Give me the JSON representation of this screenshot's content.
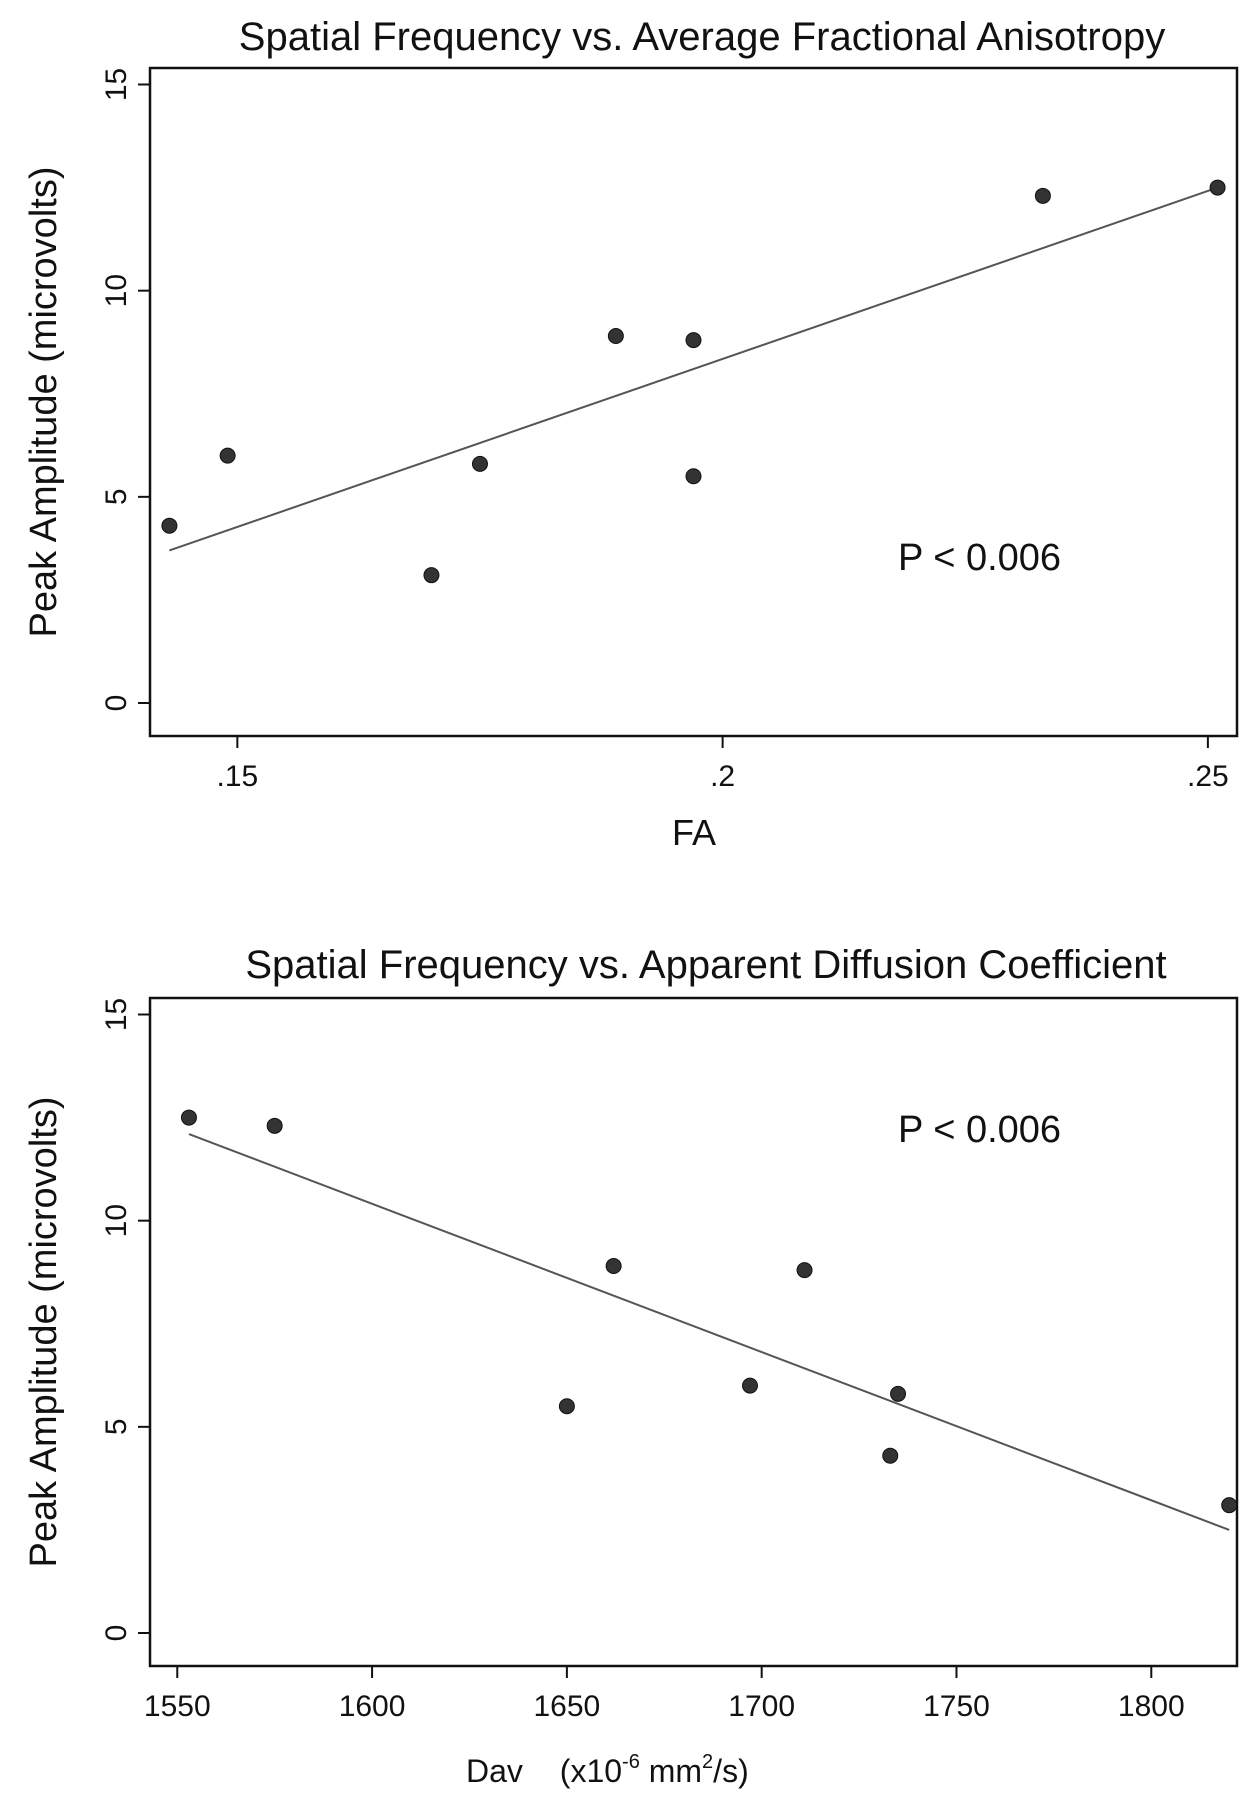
{
  "chart_data": [
    {
      "type": "scatter",
      "title": "Spatial Frequency vs. Average Fractional Anisotropy",
      "xlabel": "FA",
      "ylabel": "Peak Amplitude (microvolts)",
      "xlim": [
        0.141,
        0.253
      ],
      "ylim": [
        -0.8,
        15.4
      ],
      "xticks": [
        0.15,
        0.2,
        0.25
      ],
      "xtick_labels": [
        ".15",
        ".2",
        ".25"
      ],
      "yticks": [
        0,
        5,
        10,
        15
      ],
      "ytick_labels": [
        "0",
        "5",
        "10",
        "15"
      ],
      "points": [
        {
          "x": 0.143,
          "y": 4.3
        },
        {
          "x": 0.149,
          "y": 6.0
        },
        {
          "x": 0.17,
          "y": 3.1
        },
        {
          "x": 0.175,
          "y": 5.8
        },
        {
          "x": 0.189,
          "y": 8.9
        },
        {
          "x": 0.197,
          "y": 5.5
        },
        {
          "x": 0.197,
          "y": 8.8
        },
        {
          "x": 0.233,
          "y": 12.3
        },
        {
          "x": 0.251,
          "y": 12.5
        }
      ],
      "fit_line": {
        "x": [
          0.143,
          0.251
        ],
        "y": [
          3.7,
          12.5
        ]
      },
      "annotation": "P < 0.006",
      "grid": false
    },
    {
      "type": "scatter",
      "title": "Spatial Frequency vs. Apparent Diffusion Coefficient",
      "xlabel": "Dav",
      "xlabel_unit": "(x10",
      "xlabel_unit_sup": "-6",
      "xlabel_unit_mid": " mm",
      "xlabel_unit_sup2": "2",
      "xlabel_unit_end": "/s)",
      "ylabel": "Peak Amplitude (microvolts)",
      "xlim": [
        1543,
        1822
      ],
      "ylim": [
        -0.8,
        15.4
      ],
      "xticks": [
        1550,
        1600,
        1650,
        1700,
        1750,
        1800
      ],
      "xtick_labels": [
        "1550",
        "1600",
        "1650",
        "1700",
        "1750",
        "1800"
      ],
      "yticks": [
        0,
        5,
        10,
        15
      ],
      "ytick_labels": [
        "0",
        "5",
        "10",
        "15"
      ],
      "points": [
        {
          "x": 1553,
          "y": 12.5
        },
        {
          "x": 1575,
          "y": 12.3
        },
        {
          "x": 1650,
          "y": 5.5
        },
        {
          "x": 1662,
          "y": 8.9
        },
        {
          "x": 1697,
          "y": 6.0
        },
        {
          "x": 1711,
          "y": 8.8
        },
        {
          "x": 1733,
          "y": 4.3
        },
        {
          "x": 1735,
          "y": 5.8
        },
        {
          "x": 1820,
          "y": 3.1
        }
      ],
      "fit_line": {
        "x": [
          1553,
          1820
        ],
        "y": [
          12.1,
          2.5
        ]
      },
      "annotation": "P < 0.006",
      "grid": false
    }
  ]
}
